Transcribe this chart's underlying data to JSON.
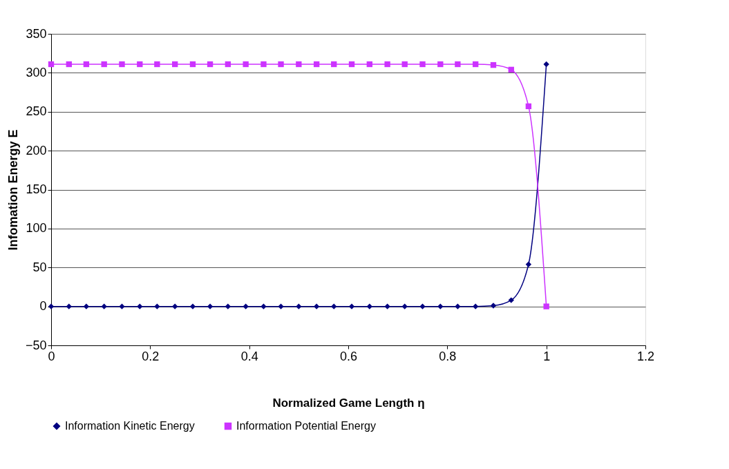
{
  "chart_data": {
    "type": "line",
    "xlabel": "Normalized Game Length η",
    "ylabel": "Infomation Energy E",
    "x": [
      0,
      0.036,
      0.071,
      0.107,
      0.143,
      0.179,
      0.214,
      0.25,
      0.286,
      0.321,
      0.357,
      0.393,
      0.429,
      0.464,
      0.5,
      0.536,
      0.571,
      0.607,
      0.643,
      0.679,
      0.714,
      0.75,
      0.786,
      0.821,
      0.857,
      0.893,
      0.929,
      0.964,
      1
    ],
    "series": [
      {
        "name": "Information Kinetic Energy",
        "color": "#000080",
        "marker": "diamond",
        "values": [
          0,
          0,
          0,
          0,
          0,
          0,
          0,
          0,
          0,
          0,
          0,
          0,
          0,
          0,
          0,
          0,
          0,
          0,
          0,
          0,
          0,
          0,
          0,
          0,
          0,
          1,
          8,
          54,
          311
        ]
      },
      {
        "name": "Information Potential Energy",
        "color": "#cc33ff",
        "marker": "square",
        "values": [
          311,
          311,
          311,
          311,
          311,
          311,
          311,
          311,
          311,
          311,
          311,
          311,
          311,
          311,
          311,
          311,
          311,
          311,
          311,
          311,
          311,
          311,
          311,
          311,
          311,
          310,
          304,
          257,
          0
        ]
      }
    ],
    "xlim": [
      0,
      1.2
    ],
    "xticks": [
      0,
      0.2,
      0.4,
      0.6,
      0.8,
      1,
      1.2
    ],
    "ylim": [
      -50,
      350
    ],
    "yticks": [
      -50,
      0,
      50,
      100,
      150,
      200,
      250,
      300,
      350
    ],
    "grid": "y",
    "legend": "bottom",
    "line_style": "solid"
  }
}
